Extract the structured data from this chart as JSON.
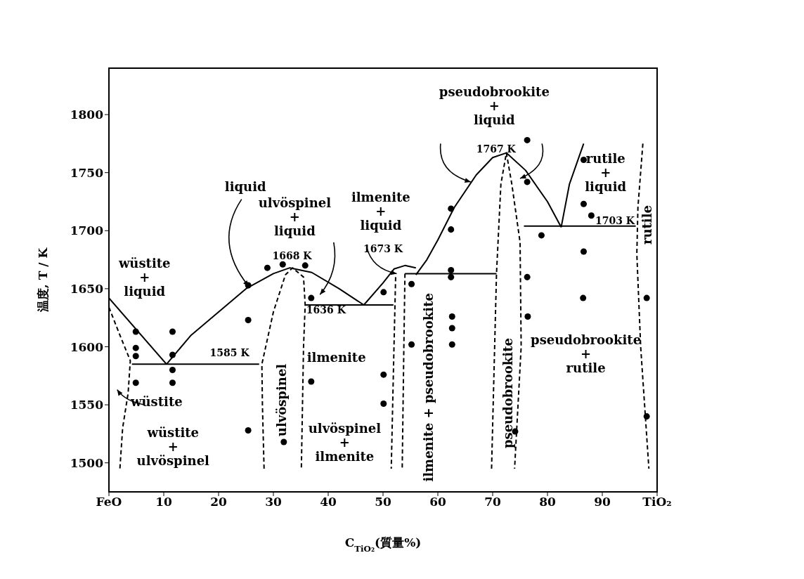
{
  "chart_data": {
    "type": "line",
    "xlabel": "C$_{TiO₂}$(質量%)",
    "ylabel": "温度, T / K",
    "xlim": [
      0,
      100
    ],
    "ylim": [
      1475,
      1840
    ],
    "xticks": [
      {
        "value": 0,
        "label": "FeO"
      },
      10,
      20,
      30,
      40,
      50,
      60,
      70,
      80,
      90,
      {
        "value": 100,
        "label": "TiO₂"
      }
    ],
    "yticks": [
      1500,
      1550,
      1600,
      1650,
      1700,
      1750,
      1800
    ],
    "grid": false,
    "line_style": "solid",
    "series": [
      {
        "color": "#000000",
        "x": [
          0,
          10.5
        ],
        "values": [
          1642,
          1585
        ]
      },
      {
        "color": "#000000",
        "x": [
          10.5,
          15,
          20,
          25,
          30,
          33,
          37,
          42,
          46.5
        ],
        "values": [
          1585,
          1610,
          1630,
          1650,
          1663,
          1668,
          1664,
          1650,
          1636
        ]
      },
      {
        "color": "#000000",
        "x": [
          46.5,
          50,
          52,
          54,
          56
        ],
        "values": [
          1636,
          1655,
          1667,
          1670,
          1668
        ]
      },
      {
        "color": "#000000",
        "x": [
          56,
          58,
          60,
          63,
          67,
          70,
          72.5,
          76,
          80,
          82.5
        ],
        "values": [
          1662,
          1675,
          1692,
          1720,
          1748,
          1763,
          1767,
          1752,
          1725,
          1703
        ]
      },
      {
        "color": "#000000",
        "x": [
          82.5,
          84,
          86.6
        ],
        "values": [
          1703,
          1740,
          1775
        ]
      },
      {
        "color": "#000000",
        "x": [
          4.2,
          27.4
        ],
        "values": [
          1585,
          1585
        ]
      },
      {
        "color": "#000000",
        "x": [
          35.8,
          51.9
        ],
        "values": [
          1636,
          1636
        ]
      },
      {
        "color": "#000000",
        "x": [
          54,
          70.7
        ],
        "values": [
          1663,
          1663
        ]
      },
      {
        "color": "#000000",
        "x": [
          75.7,
          96.1
        ],
        "values": [
          1704,
          1704
        ]
      },
      {
        "line_style": "dashed",
        "color": "#000000",
        "x": [
          0,
          2,
          3.9,
          3.5,
          2.5,
          2
        ],
        "values": [
          1634,
          1610,
          1588,
          1560,
          1530,
          1495
        ]
      },
      {
        "line_style": "dashed",
        "color": "#000000",
        "x": [
          28.3,
          28,
          27.9,
          30,
          32.2,
          33.5,
          35.5,
          35.8,
          35.5,
          35.1
        ],
        "values": [
          1495,
          1550,
          1585,
          1630,
          1662,
          1668,
          1660,
          1636,
          1600,
          1495
        ]
      },
      {
        "line_style": "dashed",
        "color": "#000000",
        "x": [
          52.3,
          52,
          51.5
        ],
        "values": [
          1660,
          1600,
          1495
        ]
      },
      {
        "line_style": "dashed",
        "color": "#000000",
        "x": [
          54,
          53.8,
          53.5
        ],
        "values": [
          1663,
          1600,
          1495
        ]
      },
      {
        "line_style": "dashed",
        "color": "#000000",
        "x": [
          69.8,
          70.7,
          71.5,
          72.5,
          73.5,
          75,
          75.2,
          74
        ],
        "values": [
          1495,
          1663,
          1740,
          1767,
          1740,
          1690,
          1600,
          1495
        ]
      },
      {
        "line_style": "dashed",
        "color": "#000000",
        "x": [
          97.4,
          96.5,
          96.3,
          97,
          98.5
        ],
        "values": [
          1775,
          1720,
          1680,
          1600,
          1495
        ]
      },
      {
        "type": "scatter",
        "marker": "circle",
        "color": "#000000",
        "x": [
          4.9,
          4.9,
          4.9,
          4.9,
          11.6,
          11.6,
          11.6,
          11.6,
          25.4,
          25.4,
          25.4,
          31.9,
          36.9,
          36.9,
          50.1,
          50.1,
          50.1,
          28.9,
          31.7,
          35.8,
          62.4,
          62.4,
          62.4,
          62.4,
          76.3,
          76.3,
          78.9,
          86.6,
          86.6,
          88,
          86.6,
          76.3,
          55.2,
          55.2,
          62.6,
          62.6,
          62.6,
          76.4,
          74.1,
          86.5,
          98.1,
          98.1
        ],
        "values": [
          1613,
          1599,
          1592,
          1569,
          1613,
          1593,
          1580,
          1569,
          1653,
          1623,
          1528,
          1518,
          1642,
          1570,
          1576,
          1551,
          1647,
          1668,
          1671,
          1670,
          1719,
          1701,
          1666,
          1660,
          1778,
          1742,
          1696,
          1761,
          1723,
          1713,
          1682,
          1660,
          1654,
          1602,
          1602,
          1626,
          1616,
          1626,
          1527,
          1642,
          1540,
          1642
        ]
      }
    ],
    "annotations": [
      "wüstite\n+\nliquid",
      {
        "text": "liquid",
        "x": 25.5,
        "y": 1652
      },
      "ulvöspinel\n+\nliquid",
      "1668 K",
      "ilmenite\n+\nliquid",
      "1673 K",
      "pseudobrookite\n+\nliquid",
      "1767 K",
      "rutile\n+\nliquid",
      "1703 K",
      "rutile",
      "1636 K",
      "1585 K",
      "ulvöspinel",
      "ilmenite",
      "pseudobrookite\n+\nrutile",
      "wüstite",
      "wüstite\n+\nulvöspinel",
      "ulvöspinel\n+\nilmenite",
      "ilmenite + pseudobrookite",
      "pseudobrookite"
    ]
  }
}
